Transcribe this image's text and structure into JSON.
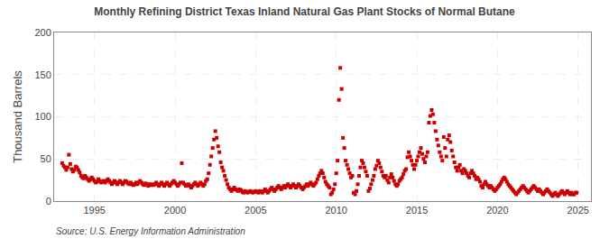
{
  "chart_data": {
    "type": "scatter",
    "title": "Monthly Refining District Texas Inland Natural Gas Plant Stocks of Normal Butane",
    "ylabel": "Thousand Barrels",
    "source": "Source: U.S. Energy Information Administration",
    "color": "#cc0000",
    "marker": "square",
    "grid": true,
    "xlim": [
      1992.5,
      2025.8
    ],
    "ylim": [
      0,
      200
    ],
    "xticks": [
      1995,
      2000,
      2005,
      2010,
      2015,
      2020,
      2025
    ],
    "yticks": [
      0,
      50,
      100,
      150,
      200
    ],
    "x": [
      1993.0,
      1993.083,
      1993.167,
      1993.25,
      1993.333,
      1993.417,
      1993.5,
      1993.583,
      1993.667,
      1993.75,
      1993.833,
      1993.917,
      1994.0,
      1994.083,
      1994.167,
      1994.25,
      1994.333,
      1994.417,
      1994.5,
      1994.583,
      1994.667,
      1994.75,
      1994.833,
      1994.917,
      1995.0,
      1995.083,
      1995.167,
      1995.25,
      1995.333,
      1995.417,
      1995.5,
      1995.583,
      1995.667,
      1995.75,
      1995.833,
      1995.917,
      1996.0,
      1996.083,
      1996.167,
      1996.25,
      1996.333,
      1996.417,
      1996.5,
      1996.583,
      1996.667,
      1996.75,
      1996.833,
      1996.917,
      1997.0,
      1997.083,
      1997.167,
      1997.25,
      1997.333,
      1997.417,
      1997.5,
      1997.583,
      1997.667,
      1997.75,
      1997.833,
      1997.917,
      1998.0,
      1998.083,
      1998.167,
      1998.25,
      1998.333,
      1998.417,
      1998.5,
      1998.583,
      1998.667,
      1998.75,
      1998.833,
      1998.917,
      1999.0,
      1999.083,
      1999.167,
      1999.25,
      1999.333,
      1999.417,
      1999.5,
      1999.583,
      1999.667,
      1999.75,
      1999.833,
      1999.917,
      2000.0,
      2000.083,
      2000.167,
      2000.25,
      2000.333,
      2000.417,
      2000.5,
      2000.583,
      2000.667,
      2000.75,
      2000.833,
      2000.917,
      2001.0,
      2001.083,
      2001.167,
      2001.25,
      2001.333,
      2001.417,
      2001.5,
      2001.583,
      2001.667,
      2001.75,
      2001.833,
      2001.917,
      2002.0,
      2002.083,
      2002.167,
      2002.25,
      2002.333,
      2002.417,
      2002.5,
      2002.583,
      2002.667,
      2002.75,
      2002.833,
      2002.917,
      2003.0,
      2003.083,
      2003.167,
      2003.25,
      2003.333,
      2003.417,
      2003.5,
      2003.583,
      2003.667,
      2003.75,
      2003.833,
      2003.917,
      2004.0,
      2004.083,
      2004.167,
      2004.25,
      2004.333,
      2004.417,
      2004.5,
      2004.583,
      2004.667,
      2004.75,
      2004.833,
      2004.917,
      2005.0,
      2005.083,
      2005.167,
      2005.25,
      2005.333,
      2005.417,
      2005.5,
      2005.583,
      2005.667,
      2005.75,
      2005.833,
      2005.917,
      2006.0,
      2006.083,
      2006.167,
      2006.25,
      2006.333,
      2006.417,
      2006.5,
      2006.583,
      2006.667,
      2006.75,
      2006.833,
      2006.917,
      2007.0,
      2007.083,
      2007.167,
      2007.25,
      2007.333,
      2007.417,
      2007.5,
      2007.583,
      2007.667,
      2007.75,
      2007.833,
      2007.917,
      2008.0,
      2008.083,
      2008.167,
      2008.25,
      2008.333,
      2008.417,
      2008.5,
      2008.583,
      2008.667,
      2008.75,
      2008.833,
      2008.917,
      2009.0,
      2009.083,
      2009.167,
      2009.25,
      2009.333,
      2009.417,
      2009.5,
      2009.583,
      2009.667,
      2009.75,
      2009.833,
      2009.917,
      2010.0,
      2010.083,
      2010.167,
      2010.25,
      2010.333,
      2010.417,
      2010.5,
      2010.583,
      2010.667,
      2010.75,
      2010.833,
      2010.917,
      2011.0,
      2011.083,
      2011.167,
      2011.25,
      2011.333,
      2011.417,
      2011.5,
      2011.583,
      2011.667,
      2011.75,
      2011.833,
      2011.917,
      2012.0,
      2012.083,
      2012.167,
      2012.25,
      2012.333,
      2012.417,
      2012.5,
      2012.583,
      2012.667,
      2012.75,
      2012.833,
      2012.917,
      2013.0,
      2013.083,
      2013.167,
      2013.25,
      2013.333,
      2013.417,
      2013.5,
      2013.583,
      2013.667,
      2013.75,
      2013.833,
      2013.917,
      2014.0,
      2014.083,
      2014.167,
      2014.25,
      2014.333,
      2014.417,
      2014.5,
      2014.583,
      2014.667,
      2014.75,
      2014.833,
      2014.917,
      2015.0,
      2015.083,
      2015.167,
      2015.25,
      2015.333,
      2015.417,
      2015.5,
      2015.583,
      2015.667,
      2015.75,
      2015.833,
      2015.917,
      2016.0,
      2016.083,
      2016.167,
      2016.25,
      2016.333,
      2016.417,
      2016.5,
      2016.583,
      2016.667,
      2016.75,
      2016.833,
      2016.917,
      2017.0,
      2017.083,
      2017.167,
      2017.25,
      2017.333,
      2017.417,
      2017.5,
      2017.583,
      2017.667,
      2017.75,
      2017.833,
      2017.917,
      2018.0,
      2018.083,
      2018.167,
      2018.25,
      2018.333,
      2018.417,
      2018.5,
      2018.583,
      2018.667,
      2018.75,
      2018.833,
      2018.917,
      2019.0,
      2019.083,
      2019.167,
      2019.25,
      2019.333,
      2019.417,
      2019.5,
      2019.583,
      2019.667,
      2019.75,
      2019.833,
      2019.917,
      2020.0,
      2020.083,
      2020.167,
      2020.25,
      2020.333,
      2020.417,
      2020.5,
      2020.583,
      2020.667,
      2020.75,
      2020.833,
      2020.917,
      2021.0,
      2021.083,
      2021.167,
      2021.25,
      2021.333,
      2021.417,
      2021.5,
      2021.583,
      2021.667,
      2021.75,
      2021.833,
      2021.917,
      2022.0,
      2022.083,
      2022.167,
      2022.25,
      2022.333,
      2022.417,
      2022.5,
      2022.583,
      2022.667,
      2022.75,
      2022.833,
      2022.917,
      2023.0,
      2023.083,
      2023.167,
      2023.25,
      2023.333,
      2023.417,
      2023.5,
      2023.583,
      2023.667,
      2023.75,
      2023.833,
      2023.917,
      2024.0,
      2024.083,
      2024.167,
      2024.25,
      2024.333,
      2024.417,
      2024.5,
      2024.583,
      2024.667,
      2024.75,
      2024.833,
      2024.917
    ],
    "values": [
      45,
      42,
      40,
      37,
      40,
      55,
      44,
      38,
      35,
      37,
      41,
      40,
      37,
      34,
      30,
      28,
      27,
      30,
      28,
      26,
      24,
      26,
      28,
      26,
      24,
      22,
      23,
      26,
      24,
      22,
      23,
      24,
      22,
      24,
      26,
      24,
      22,
      20,
      22,
      24,
      22,
      20,
      22,
      24,
      22,
      20,
      22,
      24,
      23,
      21,
      20,
      22,
      20,
      19,
      20,
      22,
      20,
      22,
      24,
      22,
      20,
      19,
      21,
      20,
      18,
      20,
      19,
      20,
      19,
      20,
      22,
      20,
      18,
      20,
      22,
      20,
      18,
      20,
      22,
      20,
      18,
      20,
      22,
      24,
      22,
      20,
      18,
      20,
      22,
      45,
      22,
      20,
      18,
      19,
      20,
      18,
      16,
      18,
      20,
      22,
      20,
      18,
      20,
      22,
      20,
      18,
      20,
      24,
      26,
      33,
      43,
      53,
      63,
      73,
      83,
      75,
      65,
      58,
      46,
      40,
      36,
      30,
      25,
      20,
      16,
      14,
      12,
      14,
      16,
      14,
      13,
      12,
      14,
      13,
      11,
      10,
      12,
      11,
      10,
      11,
      12,
      11,
      10,
      11,
      12,
      11,
      10,
      12,
      11,
      10,
      12,
      14,
      12,
      10,
      12,
      14,
      16,
      14,
      12,
      14,
      16,
      18,
      16,
      14,
      16,
      18,
      16,
      18,
      20,
      18,
      16,
      18,
      20,
      18,
      16,
      18,
      20,
      18,
      16,
      14,
      16,
      18,
      20,
      18,
      20,
      22,
      20,
      18,
      20,
      22,
      26,
      30,
      33,
      36,
      33,
      28,
      23,
      20,
      18,
      16,
      8,
      10,
      14,
      20,
      33,
      48,
      120,
      158,
      133,
      75,
      63,
      48,
      43,
      38,
      33,
      28,
      30,
      10,
      8,
      12,
      20,
      30,
      40,
      48,
      45,
      40,
      35,
      30,
      12,
      15,
      20,
      25,
      30,
      38,
      42,
      48,
      45,
      40,
      35,
      30,
      28,
      30,
      25,
      22,
      28,
      32,
      28,
      24,
      20,
      18,
      20,
      24,
      26,
      28,
      32,
      36,
      38,
      52,
      58,
      53,
      48,
      43,
      38,
      43,
      48,
      53,
      58,
      63,
      56,
      50,
      46,
      53,
      58,
      93,
      101,
      108,
      103,
      93,
      83,
      73,
      66,
      58,
      53,
      48,
      76,
      63,
      53,
      73,
      78,
      70,
      60,
      53,
      46,
      40,
      36,
      40,
      43,
      36,
      33,
      38,
      36,
      33,
      30,
      28,
      33,
      36,
      33,
      30,
      26,
      28,
      26,
      23,
      18,
      16,
      20,
      23,
      20,
      18,
      16,
      18,
      16,
      14,
      12,
      14,
      16,
      18,
      20,
      23,
      26,
      28,
      26,
      23,
      20,
      18,
      16,
      14,
      12,
      10,
      8,
      10,
      12,
      14,
      16,
      18,
      16,
      14,
      12,
      10,
      12,
      14,
      16,
      18,
      16,
      14,
      12,
      14,
      12,
      10,
      8,
      10,
      12,
      14,
      12,
      10,
      8,
      6,
      8,
      10,
      8,
      6,
      8,
      10,
      12,
      10,
      8,
      10,
      12,
      10,
      8,
      10,
      8,
      8,
      10,
      10
    ]
  }
}
